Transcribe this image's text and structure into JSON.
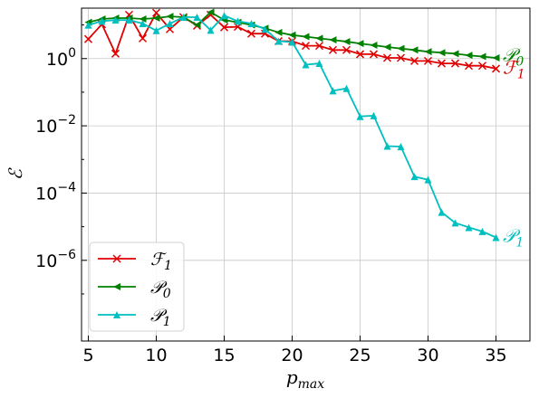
{
  "chart_data": {
    "type": "line",
    "xlabel": "p_max",
    "ylabel": "ℰ",
    "xlim": [
      4.5,
      37.5
    ],
    "ylim_log10": [
      -8.4,
      1.5
    ],
    "yscale": "log",
    "grid": true,
    "legend_position": "lower-left",
    "xticks": [
      5,
      10,
      15,
      20,
      25,
      30,
      35
    ],
    "xtick_labels": [
      "5",
      "10",
      "15",
      "20",
      "25",
      "30",
      "35"
    ],
    "yticks_exp": [
      0,
      -2,
      -4,
      -6
    ],
    "ytick_labels": [
      {
        "base": "10",
        "exp": "0"
      },
      {
        "base": "10",
        "exp": "−2"
      },
      {
        "base": "10",
        "exp": "−4"
      },
      {
        "base": "10",
        "exp": "−6"
      }
    ],
    "series": [
      {
        "name": "F_1",
        "legend_base": "ℱ",
        "legend_sub": "1",
        "color": "#e00000",
        "marker": "x",
        "x": [
          5,
          6,
          7,
          8,
          9,
          10,
          11,
          12,
          13,
          14,
          15,
          16,
          17,
          18,
          19,
          20,
          21,
          22,
          23,
          24,
          25,
          26,
          27,
          28,
          29,
          30,
          31,
          32,
          33,
          34,
          35
        ],
        "y": [
          3.8,
          10.5,
          1.4,
          20,
          4.0,
          23,
          7.5,
          17,
          9.5,
          20,
          8.5,
          8.8,
          5.5,
          5.5,
          3.3,
          3.3,
          2.4,
          2.4,
          1.8,
          1.8,
          1.35,
          1.35,
          1.05,
          1.05,
          0.85,
          0.85,
          0.72,
          0.72,
          0.61,
          0.61,
          0.5
        ]
      },
      {
        "name": "P_0",
        "legend_base": "𝒫",
        "legend_sub": "0",
        "color": "#008000",
        "marker": "triangle-left",
        "x": [
          5,
          6,
          7,
          8,
          9,
          10,
          11,
          12,
          13,
          14,
          15,
          16,
          17,
          18,
          19,
          20,
          21,
          22,
          23,
          24,
          25,
          26,
          27,
          28,
          29,
          30,
          31,
          32,
          33,
          34,
          35
        ],
        "y": [
          12,
          15,
          16,
          16,
          15,
          16,
          18,
          17,
          10,
          24,
          14,
          12,
          10,
          8,
          6,
          5,
          4.5,
          4,
          3.6,
          3.2,
          2.8,
          2.5,
          2.2,
          2,
          1.8,
          1.6,
          1.5,
          1.4,
          1.25,
          1.15,
          1.05
        ]
      },
      {
        "name": "P_1",
        "legend_base": "𝒫",
        "legend_sub": "1",
        "color": "#00bfbf",
        "marker": "triangle-up",
        "x": [
          5,
          6,
          7,
          8,
          9,
          10,
          11,
          12,
          13,
          14,
          15,
          16,
          17,
          18,
          19,
          20,
          21,
          22,
          23,
          24,
          25,
          26,
          27,
          28,
          29,
          30,
          31,
          32,
          33,
          34,
          35
        ],
        "y": [
          10,
          13,
          14,
          14,
          11,
          6.8,
          11,
          17,
          17,
          7,
          19,
          13,
          11,
          7.5,
          3.3,
          3.1,
          0.66,
          0.72,
          0.11,
          0.13,
          0.019,
          0.02,
          0.0025,
          0.0024,
          0.00031,
          0.00025,
          2.7e-05,
          1.3e-05,
          9.5e-06,
          7.2e-06,
          4.8e-06
        ]
      }
    ],
    "end_labels": [
      {
        "series": "P_0",
        "base": "𝒫",
        "sub": "0",
        "x": 35.5,
        "y": 1.3,
        "color": "#008000"
      },
      {
        "series": "F_1",
        "base": "ℱ",
        "sub": "1",
        "x": 35.5,
        "y": 0.55,
        "color": "#e00000"
      },
      {
        "series": "P_1",
        "base": "𝒫",
        "sub": "1",
        "x": 35.5,
        "y": 5.5e-06,
        "color": "#00bfbf"
      }
    ]
  }
}
